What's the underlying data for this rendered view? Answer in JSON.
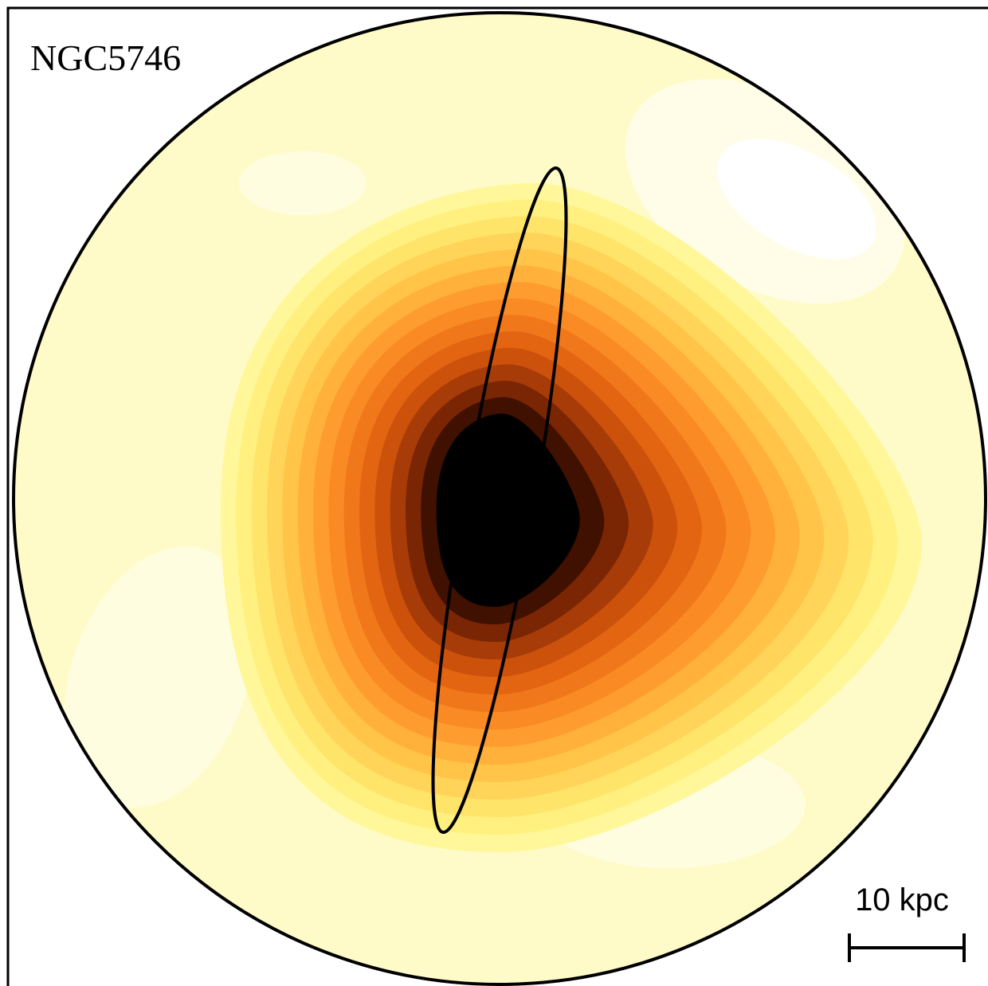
{
  "label": "NGC5746",
  "scale_bar": {
    "label": "10 kpc"
  }
}
